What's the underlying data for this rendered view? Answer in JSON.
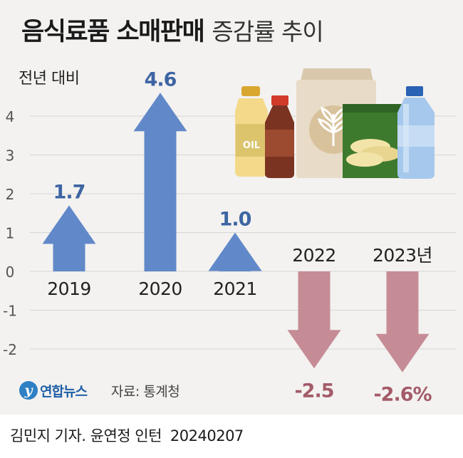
{
  "title": {
    "bold": "음식료품 소매판매",
    "light": "증감률 추이"
  },
  "source": {
    "logo_text": "연합뉴스",
    "logo_mark": "y",
    "text": "자료: 통계청"
  },
  "credit": {
    "author": "김민지 기자. 윤연정 인턴",
    "date": "20240207"
  },
  "colors": {
    "positive": "#6189c9",
    "negative": "#c68c96",
    "positive_label": "#3e65a3",
    "negative_label": "#a45b69",
    "grid": "#d6d6d6",
    "background": "#f3f2f0"
  },
  "chart_data": {
    "type": "bar",
    "title": "음식료품 소매판매 증감률 추이",
    "ylabel": "전년 대비",
    "ylim": [
      -2.5,
      4.8
    ],
    "yticks": [
      4,
      3,
      2,
      1,
      0,
      -1,
      -2
    ],
    "grid": true,
    "categories": [
      "2019",
      "2020",
      "2021",
      "2022",
      "2023년"
    ],
    "values": [
      1.7,
      4.6,
      1.0,
      -2.5,
      -2.6
    ],
    "value_labels": [
      "1.7",
      "4.6",
      "1.0",
      "-2.5",
      "-2.6%"
    ]
  }
}
